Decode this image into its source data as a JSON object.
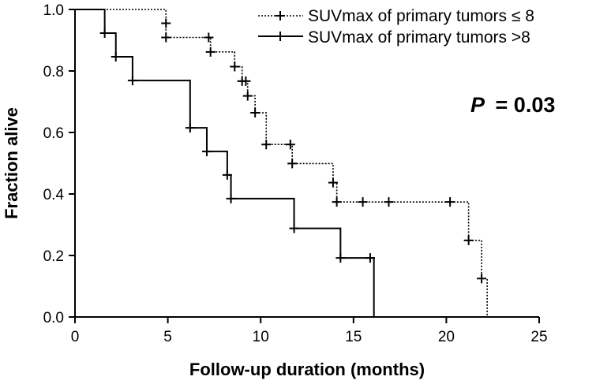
{
  "chart_data": {
    "type": "line",
    "subtype": "kaplan-meier",
    "xlabel": "Follow-up duration (months)",
    "ylabel": "Fraction alive",
    "xlim": [
      0,
      25
    ],
    "ylim": [
      0,
      1.0
    ],
    "x_ticks": [
      "0",
      "5",
      "10",
      "15",
      "20",
      "25"
    ],
    "y_ticks": [
      "0.0",
      "0.2",
      "0.4",
      "0.6",
      "0.8",
      "1.0"
    ],
    "grid": false,
    "legend_position": "top-right",
    "annotation": {
      "p_label": "P",
      "p_value": "= 0.03"
    },
    "series": [
      {
        "name": "SUVmax of primary tumors ≤ 8",
        "style": "dotted",
        "color": "#000000",
        "steps": [
          [
            0,
            1.0
          ],
          [
            4.9,
            0.955
          ],
          [
            4.9,
            0.909
          ],
          [
            7.2,
            0.909
          ],
          [
            7.3,
            0.862
          ],
          [
            8.6,
            0.814
          ],
          [
            9.0,
            0.767
          ],
          [
            9.2,
            0.767
          ],
          [
            9.3,
            0.719
          ],
          [
            9.7,
            0.664
          ],
          [
            10.3,
            0.561
          ],
          [
            11.6,
            0.561
          ],
          [
            11.7,
            0.499
          ],
          [
            13.9,
            0.437
          ],
          [
            14.1,
            0.374
          ],
          [
            20.2,
            0.374
          ],
          [
            21.2,
            0.249
          ],
          [
            21.9,
            0.125
          ],
          [
            22.2,
            0.0
          ]
        ],
        "censored": [
          [
            4.9,
            0.955
          ],
          [
            4.9,
            0.909
          ],
          [
            7.2,
            0.909
          ],
          [
            7.3,
            0.862
          ],
          [
            8.6,
            0.814
          ],
          [
            9.0,
            0.767
          ],
          [
            9.2,
            0.767
          ],
          [
            9.3,
            0.719
          ],
          [
            9.7,
            0.664
          ],
          [
            10.3,
            0.561
          ],
          [
            11.6,
            0.561
          ],
          [
            11.7,
            0.499
          ],
          [
            13.9,
            0.437
          ],
          [
            14.1,
            0.374
          ],
          [
            15.5,
            0.374
          ],
          [
            16.9,
            0.374
          ],
          [
            20.2,
            0.374
          ],
          [
            21.2,
            0.249
          ],
          [
            21.9,
            0.125
          ]
        ]
      },
      {
        "name": "SUVmax of primary tumors >8",
        "style": "solid",
        "color": "#000000",
        "steps": [
          [
            0,
            1.0
          ],
          [
            1.6,
            0.923
          ],
          [
            2.2,
            0.846
          ],
          [
            3.1,
            0.769
          ],
          [
            6.2,
            0.615
          ],
          [
            7.1,
            0.538
          ],
          [
            8.2,
            0.462
          ],
          [
            8.4,
            0.385
          ],
          [
            11.8,
            0.288
          ],
          [
            14.3,
            0.192
          ],
          [
            15.9,
            0.192
          ],
          [
            16.1,
            0.0
          ]
        ],
        "censored": [
          [
            1.6,
            0.923
          ],
          [
            2.2,
            0.846
          ],
          [
            3.1,
            0.769
          ],
          [
            6.2,
            0.615
          ],
          [
            7.1,
            0.538
          ],
          [
            8.2,
            0.462
          ],
          [
            8.4,
            0.385
          ],
          [
            11.8,
            0.288
          ],
          [
            14.3,
            0.192
          ],
          [
            15.9,
            0.192
          ]
        ]
      }
    ]
  }
}
